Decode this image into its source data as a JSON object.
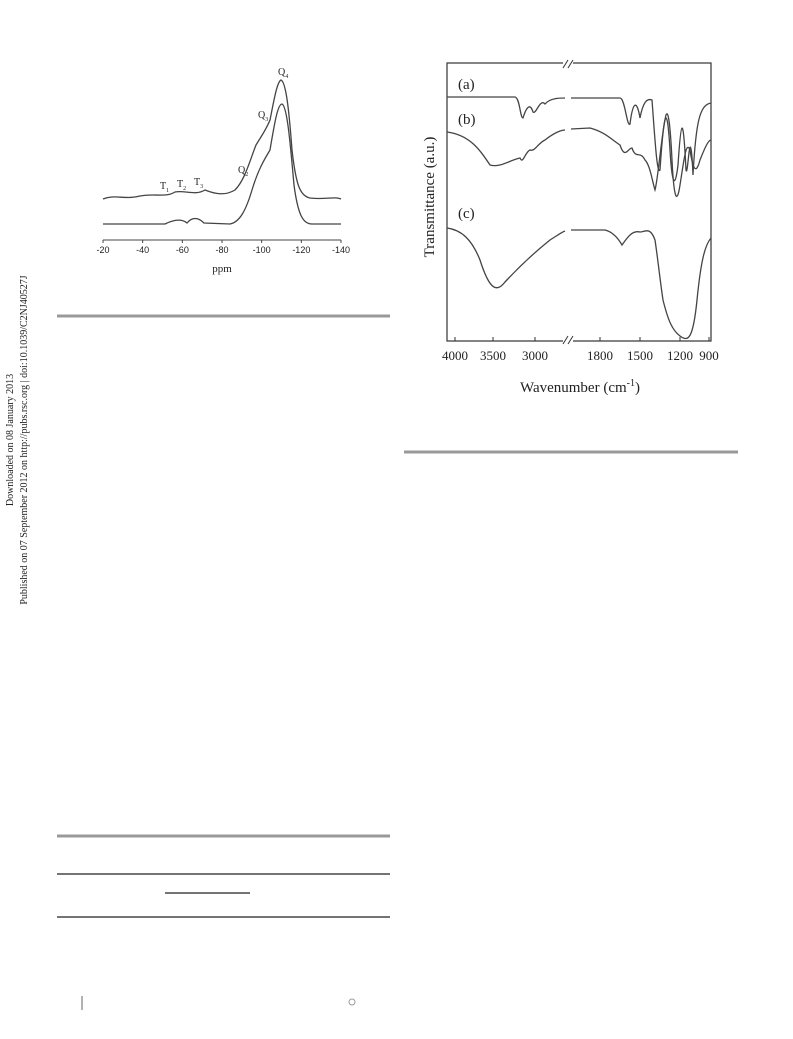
{
  "sidebar": {
    "downloaded": "Downloaded on 08 January 2013",
    "published": "Published on 07 September 2012 on http://pubs.rsc.org | doi:10.1039/C2NJ40527J"
  },
  "nmr_figure": {
    "xticks": [
      -20,
      -40,
      -60,
      -80,
      -100,
      -120,
      -140
    ],
    "xlabel": "ppm",
    "peaks": [
      {
        "symbol": "T",
        "subscript": "1"
      },
      {
        "symbol": "T",
        "subscript": "2"
      },
      {
        "symbol": "T",
        "subscript": "3"
      },
      {
        "symbol": "Q",
        "subscript": "2"
      },
      {
        "symbol": "Q",
        "subscript": "3"
      },
      {
        "symbol": "Q",
        "subscript": "4"
      }
    ]
  },
  "ftir_figure": {
    "curve_labels": [
      "(a)",
      "(b)",
      "(c)"
    ],
    "xticks": [
      4000,
      3500,
      3000,
      1800,
      1500,
      1200,
      900
    ],
    "xlabel": {
      "text": "Wavenumber (cm",
      "superscript": "-1",
      "close": ")"
    },
    "ylabel": "Transmittance (a.u.)"
  }
}
